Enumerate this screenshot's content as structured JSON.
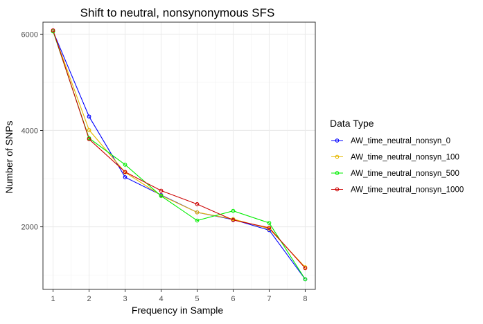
{
  "chart_data": {
    "type": "line",
    "title": "Shift to neutral, nonsynonymous SFS",
    "xlabel": "Frequency in Sample",
    "ylabel": "Number of SNPs",
    "x": [
      1,
      2,
      3,
      4,
      5,
      6,
      7,
      8
    ],
    "xlim": [
      0.72,
      8.28
    ],
    "ylim": [
      700,
      6250
    ],
    "yticks": [
      2000,
      4000,
      6000
    ],
    "grid": true,
    "legend_position": "right",
    "legend_title": "Data Type",
    "series": [
      {
        "name": "AW_time_neutral_nonsyn_0",
        "color": "#0000ff",
        "values": [
          6060,
          4290,
          3030,
          2660,
          2300,
          2150,
          1930,
          910
        ]
      },
      {
        "name": "AW_time_neutral_nonsyn_100",
        "color": "#e6b800",
        "values": [
          6060,
          4010,
          3130,
          2650,
          2300,
          2160,
          1960,
          1160
        ]
      },
      {
        "name": "AW_time_neutral_nonsyn_500",
        "color": "#00ee00",
        "values": [
          6060,
          3840,
          3290,
          2640,
          2130,
          2330,
          2080,
          910
        ]
      },
      {
        "name": "AW_time_neutral_nonsyn_1000",
        "color": "#cc0000",
        "values": [
          6080,
          3820,
          3140,
          2750,
          2470,
          2140,
          1980,
          1140
        ]
      }
    ]
  }
}
